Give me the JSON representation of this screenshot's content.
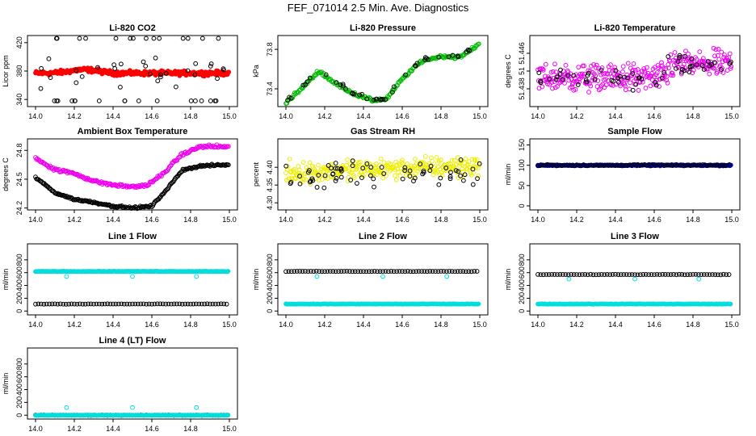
{
  "title": "FEF_071014  2.5 Min. Ave. Diagnostics",
  "chart_data": [
    {
      "id": "co2",
      "type": "scatter",
      "title": "Li-820 CO2",
      "ylabel": "Licor ppm",
      "xlim": [
        14.0,
        15.0
      ],
      "ylim": [
        330,
        430
      ],
      "x_ticks": [
        "14.0",
        "14.2",
        "14.4",
        "14.6",
        "14.8",
        "15.0"
      ],
      "y_ticks": [
        {
          "v": 340,
          "label": "340"
        },
        {
          "v": 380,
          "label": "380"
        },
        {
          "v": 420,
          "label": "420"
        }
      ],
      "series": [
        {
          "name": "main",
          "color": "#ff0000",
          "shape": "filled",
          "base": "co2"
        },
        {
          "name": "diag",
          "color": "#000000",
          "shape": "open",
          "base": "co2_scatter"
        }
      ]
    },
    {
      "id": "pressure",
      "type": "scatter",
      "title": "Li-820 Pressure",
      "ylabel": "kPa",
      "xlim": [
        14.0,
        15.0
      ],
      "ylim": [
        73.22,
        73.94
      ],
      "x_ticks": [
        "14.0",
        "14.2",
        "14.4",
        "14.6",
        "14.8",
        "15.0"
      ],
      "y_ticks": [
        {
          "v": 73.4,
          "label": "73.4"
        },
        {
          "v": 73.8,
          "label": "73.8"
        }
      ],
      "series": [
        {
          "name": "main",
          "color": "#00bb00",
          "shape": "open",
          "base": "pressure"
        },
        {
          "name": "diag",
          "color": "#000000",
          "shape": "open",
          "base": "pressure_pts"
        }
      ]
    },
    {
      "id": "temp",
      "type": "scatter",
      "title": "Li-820 Temperature",
      "ylabel": "degrees C",
      "xlim": [
        14.0,
        15.0
      ],
      "ylim": [
        51.434,
        51.45
      ],
      "x_ticks": [
        "14.0",
        "14.2",
        "14.4",
        "14.6",
        "14.8",
        "15.0"
      ],
      "y_ticks": [
        {
          "v": 51.438,
          "label": "51.438"
        },
        {
          "v": 51.442,
          "label": "51"
        },
        {
          "v": 51.446,
          "label": "51.446"
        }
      ],
      "series": [
        {
          "name": "main",
          "color": "#ee00ee",
          "shape": "open",
          "base": "temp"
        },
        {
          "name": "diag",
          "color": "#000000",
          "shape": "open",
          "base": "temp_pts"
        }
      ]
    },
    {
      "id": "ambient",
      "type": "scatter",
      "title": "Ambient Box Temperature",
      "ylabel": "degrees C",
      "xlim": [
        14.0,
        15.0
      ],
      "ylim": [
        24.18,
        24.92
      ],
      "x_ticks": [
        "14.0",
        "14.2",
        "14.4",
        "14.6",
        "14.8",
        "15.0"
      ],
      "y_ticks": [
        {
          "v": 24.2,
          "label": "24.2"
        },
        {
          "v": 24.5,
          "label": "24.5"
        },
        {
          "v": 24.8,
          "label": "24.8"
        }
      ],
      "series": [
        {
          "name": "main",
          "color": "#ee00ee",
          "shape": "open",
          "base": "ambient_hi"
        },
        {
          "name": "diag",
          "color": "#000000",
          "shape": "open",
          "base": "ambient_lo"
        }
      ]
    },
    {
      "id": "rh",
      "type": "scatter",
      "title": "Gas Stream RH",
      "ylabel": "percent",
      "xlim": [
        14.0,
        15.0
      ],
      "ylim": [
        4.28,
        4.48
      ],
      "x_ticks": [
        "14.0",
        "14.2",
        "14.4",
        "14.6",
        "14.8",
        "15.0"
      ],
      "y_ticks": [
        {
          "v": 4.3,
          "label": "4.30"
        },
        {
          "v": 4.35,
          "label": "4.35"
        },
        {
          "v": 4.4,
          "label": "4.40"
        }
      ],
      "series": [
        {
          "name": "main",
          "color": "#eeee00",
          "shape": "open",
          "base": "rh"
        },
        {
          "name": "diag",
          "color": "#000000",
          "shape": "open",
          "base": "rh_pts"
        }
      ]
    },
    {
      "id": "sample",
      "type": "scatter",
      "title": "Sample Flow",
      "ylabel": "ml/min",
      "xlim": [
        14.0,
        15.0
      ],
      "ylim": [
        -10,
        165
      ],
      "x_ticks": [
        "14.0",
        "14.2",
        "14.4",
        "14.6",
        "14.8",
        "15.0"
      ],
      "y_ticks": [
        {
          "v": 0,
          "label": "0"
        },
        {
          "v": 50,
          "label": "50"
        },
        {
          "v": 100,
          "label": "100"
        },
        {
          "v": 150,
          "label": "150"
        }
      ],
      "series": [
        {
          "name": "main",
          "color": "#0000cc",
          "shape": "filled",
          "base": "sample"
        },
        {
          "name": "diag",
          "color": "#000000",
          "shape": "open",
          "base": "sample_pts"
        }
      ]
    },
    {
      "id": "line1",
      "type": "scatter",
      "title": "Line 1 Flow",
      "ylabel": "ml/min",
      "xlim": [
        14.0,
        15.0
      ],
      "ylim": [
        -60,
        1050
      ],
      "x_ticks": [
        "14.0",
        "14.2",
        "14.4",
        "14.6",
        "14.8",
        "15.0"
      ],
      "y_ticks": [
        {
          "v": 0,
          "label": "0"
        },
        {
          "v": 200,
          "label": "200"
        },
        {
          "v": 400,
          "label": "400"
        },
        {
          "v": 600,
          "label": "600"
        },
        {
          "v": 800,
          "label": "800"
        }
      ],
      "series": [
        {
          "name": "black",
          "color": "#000000",
          "shape": "open",
          "base": "flat"
        },
        {
          "name": "cyan",
          "color": "#00dddd",
          "shape": "filled",
          "base": "flat"
        },
        {
          "name": "outlier",
          "color": "#00dddd",
          "shape": "open",
          "base": "outlier"
        }
      ]
    },
    {
      "id": "line2",
      "type": "scatter",
      "title": "Line 2 Flow",
      "ylabel": "ml/min",
      "xlim": [
        14.0,
        15.0
      ],
      "ylim": [
        -60,
        1050
      ],
      "x_ticks": [
        "14.0",
        "14.2",
        "14.4",
        "14.6",
        "14.8",
        "15.0"
      ],
      "y_ticks": [
        {
          "v": 0,
          "label": "0"
        },
        {
          "v": 200,
          "label": "200"
        },
        {
          "v": 400,
          "label": "400"
        },
        {
          "v": 600,
          "label": "600"
        },
        {
          "v": 800,
          "label": "800"
        }
      ],
      "series": [
        {
          "name": "black",
          "color": "#000000",
          "shape": "open",
          "base": "flat"
        },
        {
          "name": "cyan",
          "color": "#00dddd",
          "shape": "filled",
          "base": "flat"
        },
        {
          "name": "outlier",
          "color": "#00dddd",
          "shape": "open",
          "base": "outlier"
        }
      ]
    },
    {
      "id": "line3",
      "type": "scatter",
      "title": "Line 3 Flow",
      "ylabel": "ml/min",
      "xlim": [
        14.0,
        15.0
      ],
      "ylim": [
        -60,
        1050
      ],
      "x_ticks": [
        "14.0",
        "14.2",
        "14.4",
        "14.6",
        "14.8",
        "15.0"
      ],
      "y_ticks": [
        {
          "v": 0,
          "label": "0"
        },
        {
          "v": 200,
          "label": "200"
        },
        {
          "v": 400,
          "label": "400"
        },
        {
          "v": 600,
          "label": "600"
        },
        {
          "v": 800,
          "label": "800"
        }
      ],
      "series": [
        {
          "name": "black",
          "color": "#000000",
          "shape": "open",
          "base": "flat"
        },
        {
          "name": "cyan",
          "color": "#00dddd",
          "shape": "filled",
          "base": "flat"
        },
        {
          "name": "outlier",
          "color": "#00dddd",
          "shape": "open",
          "base": "outlier"
        }
      ]
    },
    {
      "id": "line4",
      "type": "scatter",
      "title": "Line 4 (LT) Flow",
      "ylabel": "ml/min",
      "xlim": [
        14.0,
        15.0
      ],
      "ylim": [
        -60,
        1050
      ],
      "x_ticks": [
        "14.0",
        "14.2",
        "14.4",
        "14.6",
        "14.8",
        "15.0"
      ],
      "y_ticks": [
        {
          "v": 0,
          "label": "0"
        },
        {
          "v": 200,
          "label": "200"
        },
        {
          "v": 400,
          "label": "400"
        },
        {
          "v": 600,
          "label": "600"
        },
        {
          "v": 800,
          "label": "800"
        }
      ],
      "series": [
        {
          "name": "black",
          "color": "#000000",
          "shape": "open",
          "base": "flat"
        },
        {
          "name": "cyan",
          "color": "#00dddd",
          "shape": "filled",
          "base": "flat"
        },
        {
          "name": "outlier",
          "color": "#00dddd",
          "shape": "open",
          "base": "outlier"
        }
      ]
    }
  ],
  "flow_levels": {
    "line1": {
      "black": 110,
      "cyan": 620,
      "outlier": 540
    },
    "line2": {
      "black": 620,
      "cyan": 110,
      "outlier": 540
    },
    "line3": {
      "black": 570,
      "cyan": 110,
      "outlier": 500
    },
    "line4": {
      "black": 0,
      "cyan": 0,
      "outlier": 120
    }
  },
  "outlier_x": [
    14.16,
    14.5,
    14.83
  ]
}
